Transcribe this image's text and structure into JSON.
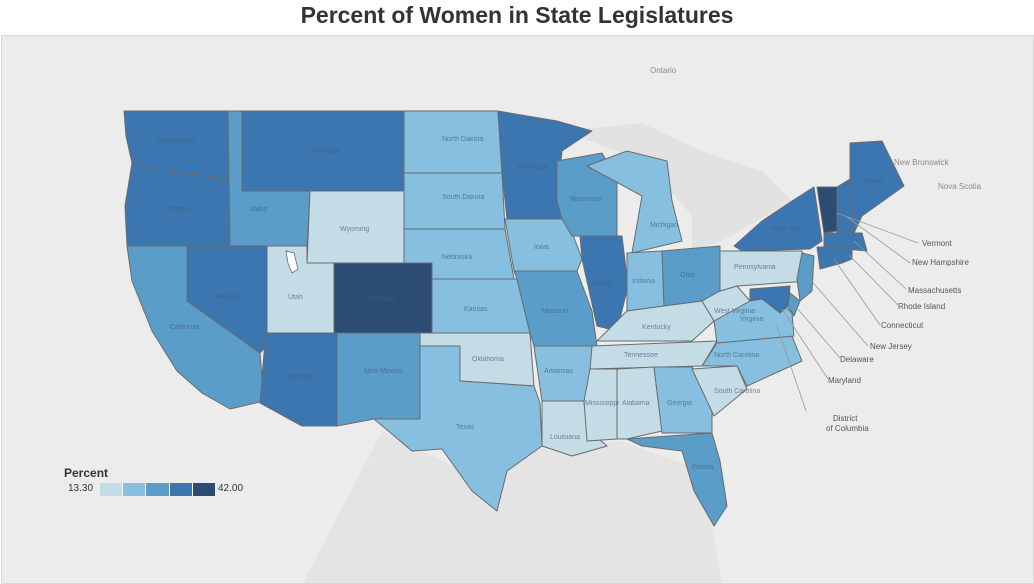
{
  "title": "Percent of Women in State Legislatures",
  "legend": {
    "title": "Percent",
    "min": "13.30",
    "max": "42.00",
    "colors": [
      "#c3dce6",
      "#86bfe0",
      "#5a9dc8",
      "#3b76b0",
      "#2d4c74"
    ]
  },
  "colors": {
    "background": "#ededed",
    "land": "#f5f5f5",
    "water": "#e6e6e6",
    "state_border": "#6b6b6b"
  },
  "context_labels": {
    "ontario": "Ontario",
    "new_brunswick": "New Brunswick",
    "nova_scotia": "Nova Scotia"
  },
  "state_labels": {
    "washington": "Washington",
    "oregon": "Oregon",
    "idaho": "Idaho",
    "montana": "Montana",
    "north_dakota": "North Dakota",
    "south_dakota": "South Dakota",
    "minnesota": "Minnesota",
    "wisconsin": "Wisconsin",
    "michigan": "Michigan",
    "wyoming": "Wyoming",
    "nebraska": "Nebraska",
    "iowa": "Iowa",
    "illinois": "Illinois",
    "indiana": "Indiana",
    "ohio": "Ohio",
    "pennsylvania": "Pennsylvania",
    "new_york": "New York",
    "maine": "Maine",
    "nevada": "Nevada",
    "utah": "Utah",
    "colorado": "Colorado",
    "kansas": "Kansas",
    "missouri": "Missouri",
    "kentucky": "Kentucky",
    "west_virginia": "West Virginia",
    "virginia": "Virginia",
    "california": "California",
    "arizona": "Arizona",
    "new_mexico": "New Mexico",
    "oklahoma": "Oklahoma",
    "arkansas": "Arkansas",
    "tennessee": "Tennessee",
    "north_carolina": "North Carolina",
    "south_carolina": "South Carolina",
    "texas": "Texas",
    "louisiana": "Louisiana",
    "mississippi": "Mississippi",
    "alabama": "Alabama",
    "georgia": "Georgia",
    "florida": "Florida"
  },
  "callouts": {
    "vermont": "Vermont",
    "new_hampshire": "New Hampshire",
    "massachusetts": "Massachusetts",
    "rhode_island": "Rhode Island",
    "connecticut": "Connecticut",
    "new_jersey": "New Jersey",
    "delaware": "Delaware",
    "maryland": "Maryland",
    "dc_line1": "District",
    "dc_line2": "of Columbia"
  },
  "state_fill_levels": {
    "washington": 4,
    "oregon": 4,
    "california": 3,
    "nevada": 4,
    "idaho": 3,
    "montana": 4,
    "wyoming": 1,
    "utah": 1,
    "colorado": 5,
    "arizona": 4,
    "new_mexico": 3,
    "north_dakota": 2,
    "south_dakota": 2,
    "nebraska": 2,
    "kansas": 2,
    "oklahoma": 1,
    "texas": 2,
    "minnesota": 4,
    "iowa": 2,
    "missouri": 3,
    "arkansas": 2,
    "louisiana": 1,
    "wisconsin": 3,
    "illinois": 4,
    "michigan": 2,
    "indiana": 2,
    "ohio": 3,
    "kentucky": 1,
    "tennessee": 1,
    "mississippi": 1,
    "alabama": 1,
    "georgia": 2,
    "florida": 3,
    "south_carolina": 1,
    "north_carolina": 2,
    "virginia": 2,
    "west_virginia": 1,
    "pennsylvania": 1,
    "new_york": 4,
    "vermont": 5,
    "new_hampshire": 4,
    "maine": 4,
    "massachusetts": 4,
    "rhode_island": 4,
    "connecticut": 4,
    "new_jersey": 3,
    "delaware": 3,
    "maryland": 4
  }
}
